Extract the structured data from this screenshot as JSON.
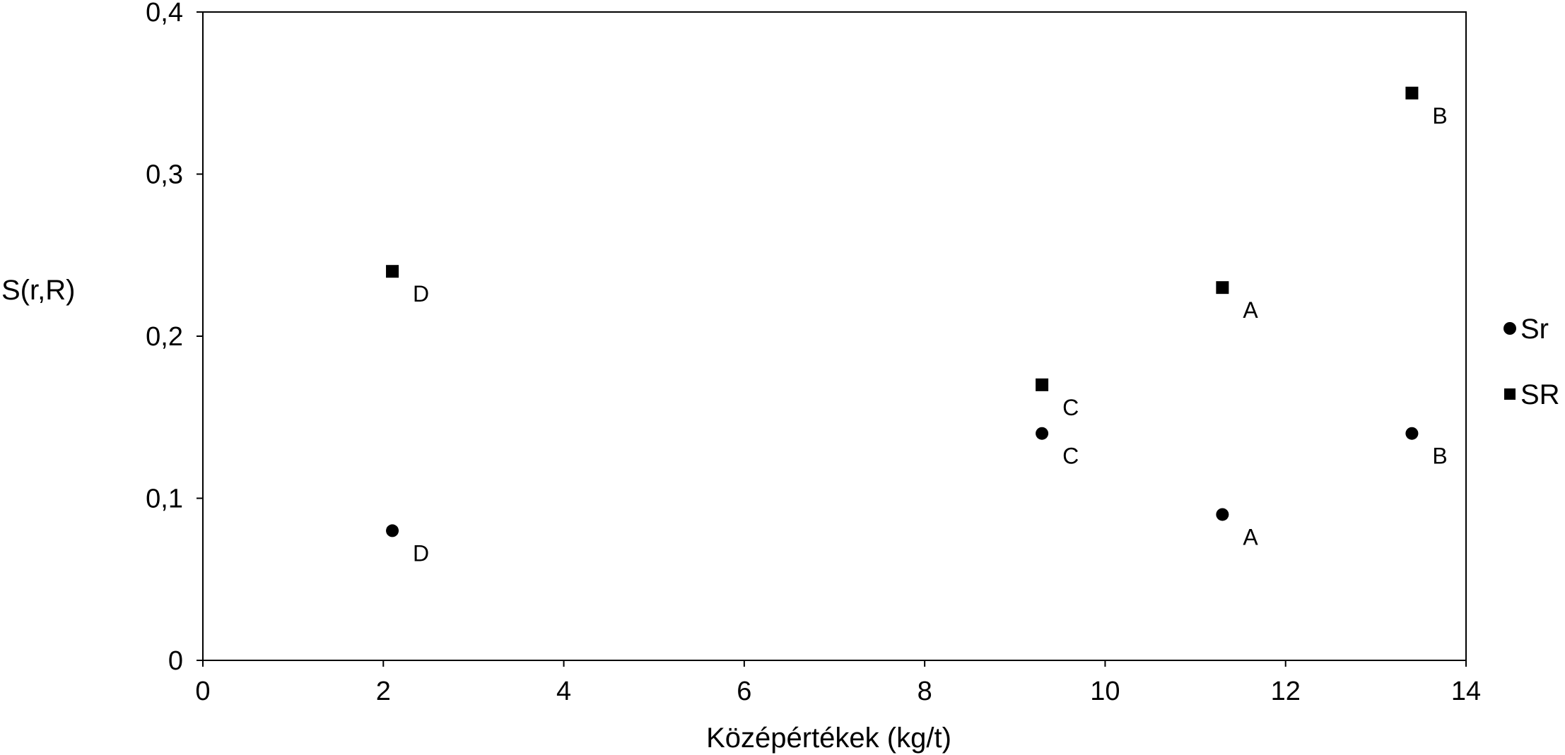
{
  "chart_data": {
    "type": "scatter",
    "title": "",
    "xlabel": "Középértékek (kg/t)",
    "ylabel": "S(r,R)",
    "xlim": [
      0,
      14
    ],
    "ylim": [
      0,
      0.4
    ],
    "x_ticks": [
      0,
      2,
      4,
      6,
      8,
      10,
      12,
      14
    ],
    "x_tick_labels": [
      "0",
      "2",
      "4",
      "6",
      "8",
      "10",
      "12",
      "14"
    ],
    "y_ticks": [
      0,
      0.1,
      0.2,
      0.3,
      0.4
    ],
    "y_tick_labels": [
      "0",
      "0,1",
      "0,2",
      "0,3",
      "0,4"
    ],
    "grid": false,
    "legend_position": "right",
    "colors": {
      "marker": "#000000",
      "axis": "#000000",
      "background": "#ffffff"
    },
    "series": [
      {
        "name": "Sr",
        "marker": "circle",
        "points": [
          {
            "x": 2.1,
            "y": 0.08,
            "label": "D"
          },
          {
            "x": 9.3,
            "y": 0.14,
            "label": "C"
          },
          {
            "x": 11.3,
            "y": 0.09,
            "label": "A"
          },
          {
            "x": 13.4,
            "y": 0.14,
            "label": "B"
          }
        ]
      },
      {
        "name": "SR",
        "marker": "square",
        "points": [
          {
            "x": 2.1,
            "y": 0.24,
            "label": "D"
          },
          {
            "x": 9.3,
            "y": 0.17,
            "label": "C"
          },
          {
            "x": 11.3,
            "y": 0.23,
            "label": "A"
          },
          {
            "x": 13.4,
            "y": 0.35,
            "label": "B"
          }
        ]
      }
    ]
  }
}
